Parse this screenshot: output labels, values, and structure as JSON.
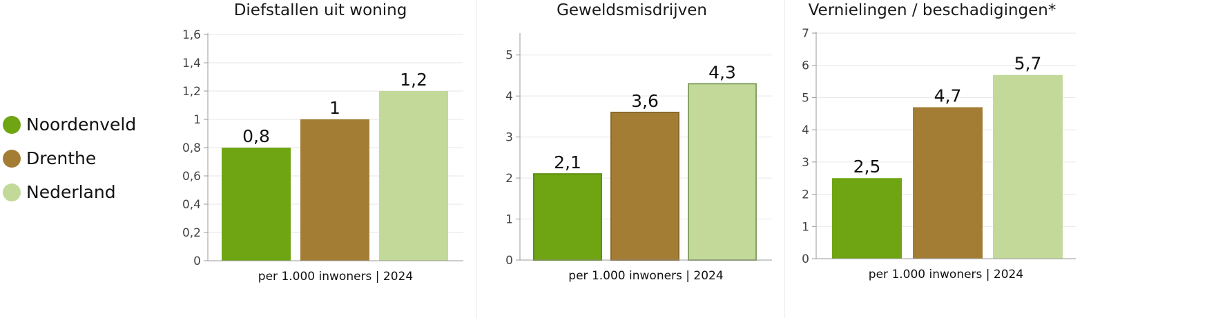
{
  "legend": [
    {
      "label": "Noordenveld",
      "color": "#6fa512"
    },
    {
      "label": "Drenthe",
      "color": "#a47d35"
    },
    {
      "label": "Nederland",
      "color": "#c3d99a"
    }
  ],
  "chart_data": [
    {
      "type": "bar",
      "title": "Diefstallen uit woning",
      "xlabel": "per 1.000 inwoners | 2024",
      "categories": [
        "Noordenveld",
        "Drenthe",
        "Nederland"
      ],
      "values": [
        0.8,
        1,
        1.2
      ],
      "value_labels": [
        "0,8",
        "1",
        "1,2"
      ],
      "ylim": [
        0,
        1.6
      ],
      "yticks": [
        0,
        0.2,
        0.4,
        0.6,
        0.8,
        1,
        1.2,
        1.4,
        1.6
      ],
      "ytick_labels": [
        "0",
        "0,2",
        "0,4",
        "0,6",
        "0,8",
        "1",
        "1,2",
        "1,4",
        "1,6"
      ],
      "grid": true,
      "colors": [
        "#6fa512",
        "#a47d35",
        "#c3d99a"
      ]
    },
    {
      "type": "bar",
      "title": "Geweldsmisdrijven",
      "xlabel": "per 1.000 inwoners | 2024",
      "categories": [
        "Noordenveld",
        "Drenthe",
        "Nederland"
      ],
      "values": [
        2.1,
        3.6,
        4.3
      ],
      "value_labels": [
        "2,1",
        "3,6",
        "4,3"
      ],
      "ylim": [
        0,
        5.5
      ],
      "yticks": [
        0,
        1,
        2,
        3,
        4,
        5
      ],
      "ytick_labels": [
        "0",
        "1",
        "2",
        "3",
        "4",
        "5"
      ],
      "grid": true,
      "colors": [
        "#6fa512",
        "#a47d35",
        "#c3d99a"
      ]
    },
    {
      "type": "bar",
      "title": "Vernielingen / beschadigingen*",
      "xlabel": "per 1.000 inwoners | 2024",
      "categories": [
        "Noordenveld",
        "Drenthe",
        "Nederland"
      ],
      "values": [
        2.5,
        4.7,
        5.7
      ],
      "value_labels": [
        "2,5",
        "4,7",
        "5,7"
      ],
      "ylim": [
        0,
        7
      ],
      "yticks": [
        0,
        1,
        2,
        3,
        4,
        5,
        6,
        7
      ],
      "ytick_labels": [
        "0",
        "1",
        "2",
        "3",
        "4",
        "5",
        "6",
        "7"
      ],
      "grid": true,
      "colors": [
        "#6fa512",
        "#a47d35",
        "#c3d99a"
      ]
    }
  ]
}
